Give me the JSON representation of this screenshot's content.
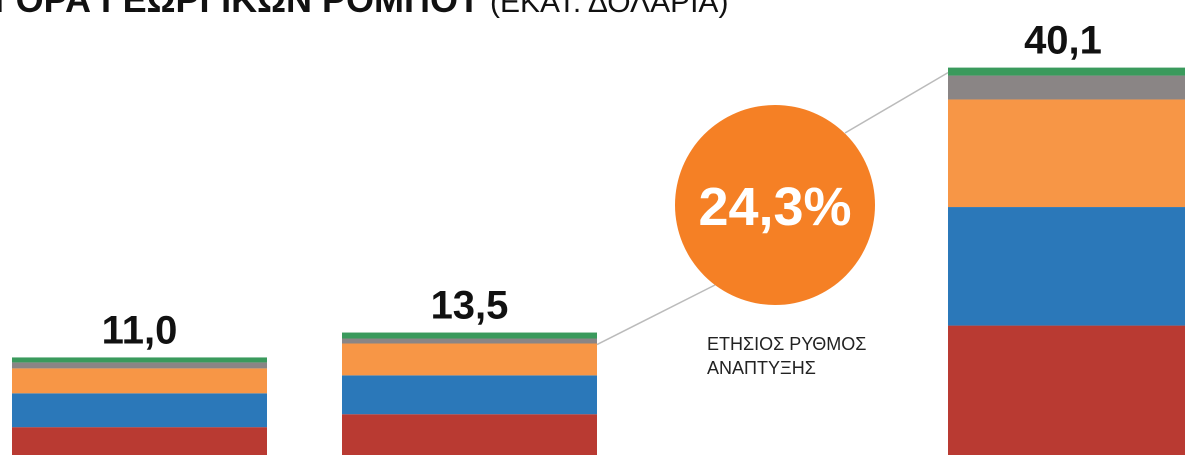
{
  "chart_data": {
    "type": "stacked_bar",
    "title": "ΑΓΟΡΑ ΓΕΩΡΓΙΚΩΝ ΡΟΜΠΟΤ",
    "subtitle": "(ΕΚΑΤ. ΔΟΛΑΡΙΑ)",
    "categories": [
      null,
      null,
      null
    ],
    "series": [
      {
        "color": "#b93a32",
        "values": [
          4.0,
          5.3,
          14.2
        ]
      },
      {
        "color": "#2b78b9",
        "values": [
          3.4,
          3.9,
          11.9
        ]
      },
      {
        "color": "#f79646",
        "values": [
          2.5,
          3.2,
          10.8
        ]
      },
      {
        "color": "#8a8585",
        "values": [
          0.6,
          0.5,
          2.4
        ]
      },
      {
        "color": "#3a9a5c",
        "values": [
          0.5,
          0.6,
          0.8
        ]
      }
    ],
    "totals": [
      11.0,
      13.5,
      40.1
    ],
    "totals_labels": [
      "11,0",
      "13,5",
      "40,1"
    ],
    "ylim": [
      0,
      45
    ],
    "growth": {
      "label": "24,3%",
      "caption": [
        "ΕΤΗΣΙΟΣ ΡΥΘΜΟΣ",
        "ΑΝΑΠΤΥΞΗΣ"
      ],
      "color": "#f58025"
    }
  }
}
